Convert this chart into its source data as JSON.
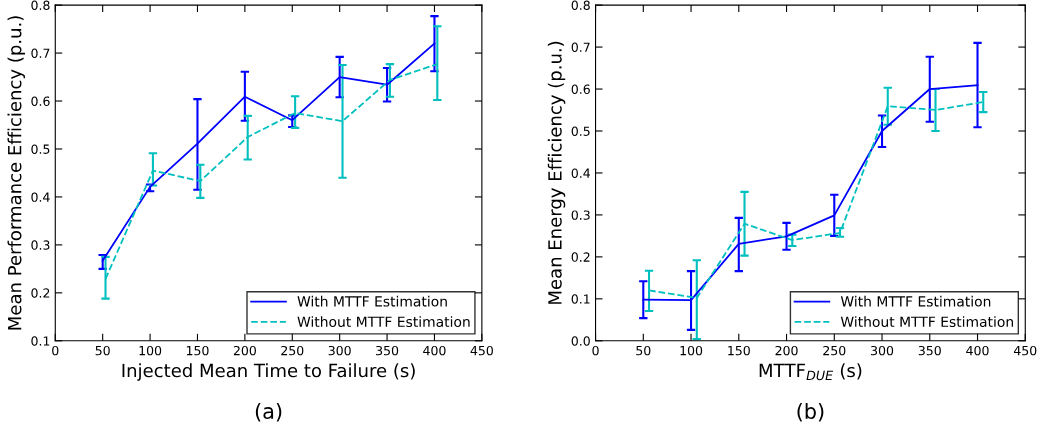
{
  "chart_data": [
    {
      "type": "line",
      "xlabel": "Injected Mean Time to Failure (s)",
      "ylabel": "Mean Performance Efficiency (p.u.)",
      "annotations": [
        "(a)"
      ],
      "xlim": [
        0,
        450
      ],
      "xticks": [
        0,
        50,
        100,
        150,
        200,
        250,
        300,
        350,
        400,
        450
      ],
      "ylim": [
        0.1,
        0.8
      ],
      "yticks": [
        0.1,
        0.2,
        0.3,
        0.4,
        0.5,
        0.6,
        0.7,
        0.8
      ],
      "grid": false,
      "legend": "bottom right",
      "marker": "none",
      "series": [
        {
          "name": "With MTTF Estimation",
          "color": "#0000ff",
          "line_style": "solid",
          "x": [
            50,
            100,
            150,
            200,
            250,
            300,
            350,
            400
          ],
          "values": [
            0.267,
            0.421,
            0.511,
            0.609,
            0.56,
            0.65,
            0.634,
            0.72
          ],
          "errors": [
            [
              0.25,
              0.279
            ],
            [
              0.412,
              0.426
            ],
            [
              0.415,
              0.604
            ],
            [
              0.559,
              0.661
            ],
            [
              0.546,
              0.57
            ],
            [
              0.608,
              0.692
            ],
            [
              0.599,
              0.669
            ],
            [
              0.662,
              0.777
            ]
          ]
        },
        {
          "name": "Without MTTF Estimation",
          "color": "#00bfbf",
          "line_style": "dashed",
          "x": [
            53,
            103,
            153,
            203,
            253,
            303,
            353,
            403
          ],
          "values": [
            0.229,
            0.455,
            0.433,
            0.525,
            0.575,
            0.558,
            0.644,
            0.677
          ],
          "errors": [
            [
              0.188,
              0.275
            ],
            [
              0.424,
              0.491
            ],
            [
              0.398,
              0.467
            ],
            [
              0.478,
              0.569
            ],
            [
              0.544,
              0.61
            ],
            [
              0.44,
              0.675
            ],
            [
              0.609,
              0.677
            ],
            [
              0.602,
              0.756
            ]
          ]
        }
      ]
    },
    {
      "type": "line",
      "xlabel": "MTTF$_{DUE}$ (s)",
      "ylabel": "Mean Energy Efficiency (p.u.)",
      "annotations": [
        "(b)"
      ],
      "xlim": [
        0,
        450
      ],
      "xticks": [
        0,
        50,
        100,
        150,
        200,
        250,
        300,
        350,
        400,
        450
      ],
      "ylim": [
        0.0,
        0.8
      ],
      "yticks": [
        {
          "value": 0,
          "label": "0.0"
        },
        0.1,
        0.2,
        0.3,
        0.4,
        0.5,
        0.6,
        0.7,
        0.8
      ],
      "grid": false,
      "legend": "bottom right",
      "marker": "none",
      "series": [
        {
          "name": "With MTTF Estimation",
          "color": "#0000ff",
          "line_style": "solid",
          "x": [
            50,
            100,
            150,
            200,
            250,
            300,
            350,
            400
          ],
          "values": [
            0.098,
            0.097,
            0.231,
            0.249,
            0.299,
            0.5,
            0.6,
            0.609
          ],
          "errors": [
            [
              0.054,
              0.142
            ],
            [
              0.026,
              0.166
            ],
            [
              0.166,
              0.293
            ],
            [
              0.217,
              0.281
            ],
            [
              0.25,
              0.348
            ],
            [
              0.462,
              0.537
            ],
            [
              0.522,
              0.677
            ],
            [
              0.509,
              0.71
            ]
          ]
        },
        {
          "name": "Without MTTF Estimation",
          "color": "#00bfbf",
          "line_style": "dashed",
          "x": [
            56,
            106,
            156,
            206,
            256,
            306,
            356,
            406
          ],
          "values": [
            0.12,
            0.102,
            0.279,
            0.24,
            0.257,
            0.559,
            0.55,
            0.569
          ],
          "errors": [
            [
              0.071,
              0.167
            ],
            [
              0.004,
              0.192
            ],
            [
              0.203,
              0.355
            ],
            [
              0.226,
              0.253
            ],
            [
              0.248,
              0.269
            ],
            [
              0.515,
              0.603
            ],
            [
              0.5,
              0.6
            ],
            [
              0.545,
              0.593
            ]
          ]
        }
      ]
    }
  ]
}
